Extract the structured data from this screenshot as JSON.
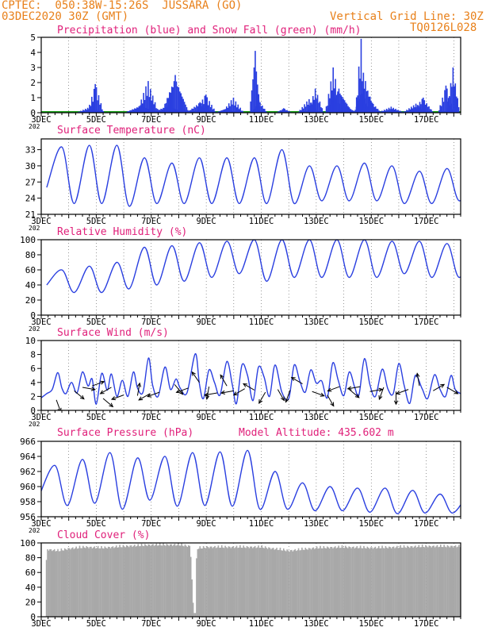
{
  "header": {
    "line1": "CPTEC:  050:38W-15:26S  JUSSARA (GO)",
    "line2": "03DEC2020 30Z (GMT)",
    "grid_note": "Vertical Grid Line: 30Z",
    "code": "TQ0126L028"
  },
  "colors": {
    "header": "#e8801a",
    "title": "#e0207a",
    "series": "#2a3fe0",
    "snow": "#18a018",
    "cloud": "#a8a8a8",
    "wind_arrow": "#000000"
  },
  "chart_data": [
    {
      "type": "bar",
      "title": "Precipitation (blue) and Snow Fall (green) (mm/h)",
      "ylim": [
        0,
        5
      ],
      "yticks": [
        0,
        1,
        2,
        3,
        4,
        5
      ],
      "xlim": [
        3.0,
        18.25
      ],
      "xlabels": [
        "3DEC",
        "5DEC",
        "7DEC",
        "9DEC",
        "11DEC",
        "13DEC",
        "15DEC",
        "17DEC"
      ],
      "x_partial_label": "202",
      "snow_all_zero": true,
      "precip_events": [
        [
          4.75,
          0.4,
          0.5
        ],
        [
          4.95,
          1.9,
          0.3
        ],
        [
          6.6,
          0.5,
          0.6
        ],
        [
          6.85,
          2.1,
          0.4
        ],
        [
          7.6,
          0.5,
          0.6
        ],
        [
          7.85,
          2.5,
          0.5
        ],
        [
          8.1,
          0.3,
          0.4
        ],
        [
          8.75,
          0.7,
          0.5
        ],
        [
          8.95,
          1.2,
          0.4
        ],
        [
          9.7,
          0.3,
          0.4
        ],
        [
          9.95,
          1.0,
          0.4
        ],
        [
          10.75,
          4.1,
          0.2
        ],
        [
          10.9,
          0.8,
          0.3
        ],
        [
          11.8,
          0.3,
          0.3
        ],
        [
          12.7,
          0.9,
          0.4
        ],
        [
          12.95,
          1.6,
          0.3
        ],
        [
          13.6,
          3.0,
          0.3
        ],
        [
          13.8,
          1.6,
          0.5
        ],
        [
          14.05,
          0.5,
          0.4
        ],
        [
          14.6,
          4.9,
          0.2
        ],
        [
          14.75,
          2.1,
          0.4
        ],
        [
          14.95,
          0.8,
          0.4
        ],
        [
          15.7,
          0.4,
          0.5
        ],
        [
          16.6,
          0.6,
          0.5
        ],
        [
          16.85,
          1.0,
          0.4
        ],
        [
          17.7,
          1.8,
          0.3
        ],
        [
          17.95,
          3.0,
          0.25
        ]
      ]
    },
    {
      "type": "line",
      "title": "Surface Temperature (nC)",
      "ylim": [
        21,
        35
      ],
      "yticks": [
        21,
        24,
        27,
        30,
        33
      ],
      "xlim": [
        3.0,
        18.25
      ],
      "xlabels": [
        "3DEC",
        "5DEC",
        "7DEC",
        "9DEC",
        "11DEC",
        "13DEC",
        "15DEC",
        "17DEC"
      ],
      "x_partial_label": "202",
      "peak_offset": 0.75,
      "daily_min": [
        26,
        23,
        23,
        22.5,
        23,
        23,
        23,
        23,
        23,
        23,
        23.5,
        23.5,
        23.5,
        23,
        23,
        23.5
      ],
      "daily_max": [
        33.5,
        33.8,
        33.8,
        31.5,
        30.5,
        31.5,
        31.5,
        31.5,
        33,
        30,
        30,
        30.5,
        30,
        29,
        29.5,
        28.5
      ]
    },
    {
      "type": "line",
      "title": "Relative Humidity (%)",
      "ylim": [
        0,
        100
      ],
      "yticks": [
        0,
        20,
        40,
        60,
        80,
        100
      ],
      "xlim": [
        3.0,
        18.25
      ],
      "xlabels": [
        "3DEC",
        "5DEC",
        "7DEC",
        "9DEC",
        "11DEC",
        "13DEC",
        "15DEC",
        "17DEC"
      ],
      "x_partial_label": "202",
      "peak_offset": 0.75,
      "daily_min": [
        40,
        30,
        30,
        35,
        40,
        45,
        50,
        55,
        45,
        50,
        50,
        50,
        50,
        55,
        50,
        50
      ],
      "daily_max": [
        60,
        65,
        70,
        90,
        92,
        96,
        98,
        100,
        100,
        100,
        100,
        100,
        98,
        98,
        95,
        95
      ]
    },
    {
      "type": "line",
      "title": "Surface Wind (m/s)",
      "ylim": [
        0,
        10
      ],
      "yticks": [
        0,
        2,
        4,
        6,
        8,
        10
      ],
      "xlim": [
        3.0,
        18.25
      ],
      "xlabels": [
        "3DEC",
        "5DEC",
        "7DEC",
        "9DEC",
        "11DEC",
        "13DEC",
        "15DEC",
        "17DEC"
      ],
      "x_partial_label": "202",
      "speed": [
        [
          3.0,
          1.8
        ],
        [
          3.2,
          2.4
        ],
        [
          3.4,
          3.0
        ],
        [
          3.6,
          5.4
        ],
        [
          3.75,
          3.2
        ],
        [
          3.9,
          2.4
        ],
        [
          4.1,
          4.0
        ],
        [
          4.3,
          2.5
        ],
        [
          4.5,
          5.5
        ],
        [
          4.7,
          3.5
        ],
        [
          4.85,
          4.5
        ],
        [
          5.0,
          0.9
        ],
        [
          5.2,
          5.3
        ],
        [
          5.4,
          2.9
        ],
        [
          5.55,
          5.2
        ],
        [
          5.75,
          2.0
        ],
        [
          5.95,
          4.3
        ],
        [
          6.15,
          2.0
        ],
        [
          6.35,
          5.5
        ],
        [
          6.5,
          3.2
        ],
        [
          6.7,
          2.6
        ],
        [
          6.9,
          7.5
        ],
        [
          7.05,
          3.6
        ],
        [
          7.25,
          2.0
        ],
        [
          7.5,
          6.2
        ],
        [
          7.7,
          3.0
        ],
        [
          7.9,
          4.5
        ],
        [
          8.05,
          3.2
        ],
        [
          8.3,
          2.5
        ],
        [
          8.6,
          8.1
        ],
        [
          8.75,
          3.8
        ],
        [
          8.9,
          1.7
        ],
        [
          9.1,
          5.8
        ],
        [
          9.3,
          4.0
        ],
        [
          9.5,
          2.2
        ],
        [
          9.75,
          7.0
        ],
        [
          9.95,
          3.6
        ],
        [
          10.1,
          1.0
        ],
        [
          10.3,
          6.5
        ],
        [
          10.5,
          5.0
        ],
        [
          10.7,
          1.4
        ],
        [
          10.9,
          6.2
        ],
        [
          11.1,
          4.8
        ],
        [
          11.3,
          2.0
        ],
        [
          11.5,
          6.5
        ],
        [
          11.75,
          2.6
        ],
        [
          12.0,
          1.7
        ],
        [
          12.2,
          6.5
        ],
        [
          12.4,
          4.2
        ],
        [
          12.6,
          2.6
        ],
        [
          12.8,
          5.8
        ],
        [
          13.0,
          3.9
        ],
        [
          13.2,
          4.2
        ],
        [
          13.4,
          1.8
        ],
        [
          13.6,
          6.8
        ],
        [
          13.8,
          4.3
        ],
        [
          14.0,
          2.1
        ],
        [
          14.2,
          5.5
        ],
        [
          14.4,
          3.3
        ],
        [
          14.55,
          2.2
        ],
        [
          14.75,
          7.4
        ],
        [
          14.95,
          3.7
        ],
        [
          15.15,
          2.0
        ],
        [
          15.4,
          5.9
        ],
        [
          15.6,
          3.1
        ],
        [
          15.8,
          2.4
        ],
        [
          16.0,
          6.7
        ],
        [
          16.2,
          3.5
        ],
        [
          16.4,
          1.0
        ],
        [
          16.6,
          5.0
        ],
        [
          16.85,
          3.1
        ],
        [
          17.05,
          1.7
        ],
        [
          17.3,
          5.1
        ],
        [
          17.5,
          3.0
        ],
        [
          17.7,
          2.0
        ],
        [
          17.9,
          5.0
        ],
        [
          18.05,
          3.0
        ],
        [
          18.25,
          2.4
        ]
      ],
      "arrows": [
        [
          3.55,
          1.5,
          290
        ],
        [
          4.2,
          2.8,
          320
        ],
        [
          4.5,
          3.3,
          350
        ],
        [
          4.85,
          3.5,
          20
        ],
        [
          5.25,
          1.7,
          320
        ],
        [
          5.55,
          3.3,
          210
        ],
        [
          6.0,
          2.2,
          200
        ],
        [
          6.5,
          2.1,
          80
        ],
        [
          6.95,
          2.4,
          210
        ],
        [
          7.3,
          2.6,
          200
        ],
        [
          7.85,
          3.7,
          310
        ],
        [
          8.35,
          3.2,
          200
        ],
        [
          8.75,
          4.0,
          125
        ],
        [
          9.1,
          3.4,
          260
        ],
        [
          9.4,
          2.5,
          190
        ],
        [
          9.75,
          3.5,
          120
        ],
        [
          10.0,
          2.8,
          190
        ],
        [
          10.4,
          3.1,
          210
        ],
        [
          10.75,
          2.9,
          150
        ],
        [
          11.15,
          2.6,
          240
        ],
        [
          11.6,
          3.0,
          300
        ],
        [
          12.05,
          2.9,
          250
        ],
        [
          12.5,
          3.8,
          150
        ],
        [
          12.85,
          2.7,
          340
        ],
        [
          13.4,
          2.2,
          300
        ],
        [
          13.85,
          3.4,
          200
        ],
        [
          14.2,
          3.0,
          320
        ],
        [
          14.6,
          3.4,
          190
        ],
        [
          14.95,
          2.7,
          10
        ],
        [
          15.45,
          3.3,
          250
        ],
        [
          15.9,
          2.7,
          270
        ],
        [
          16.35,
          3.0,
          200
        ],
        [
          16.75,
          3.5,
          100
        ],
        [
          17.25,
          2.8,
          30
        ],
        [
          17.75,
          3.3,
          330
        ]
      ]
    },
    {
      "type": "line",
      "title": "Surface Pressure (hPa)",
      "annotation": "Model Altitude: 435.602  m",
      "ylim": [
        956,
        966
      ],
      "yticks": [
        956,
        958,
        960,
        962,
        964,
        966
      ],
      "xlim": [
        3.0,
        18.25
      ],
      "xlabels": [
        "3DEC",
        "5DEC",
        "7DEC",
        "9DEC",
        "11DEC",
        "13DEC",
        "15DEC",
        "17DEC"
      ],
      "x_partial_label": "202",
      "peak_offset": 0.5,
      "daily_high": [
        962.8,
        963.6,
        964.5,
        963.8,
        964.0,
        964.5,
        964.6,
        964.8,
        962.0,
        960.5,
        960.0,
        959.8,
        959.8,
        959.5,
        959.0,
        959.0
      ],
      "daily_low": [
        959.0,
        957.5,
        957.8,
        957.0,
        958.2,
        957.4,
        957.5,
        957.4,
        957.0,
        957.0,
        956.8,
        956.8,
        956.6,
        956.4,
        956.5,
        956.5
      ]
    },
    {
      "type": "area",
      "title": "Cloud Cover (%)",
      "ylim": [
        0,
        100
      ],
      "yticks": [
        0,
        20,
        40,
        60,
        80,
        100
      ],
      "xlim": [
        3.0,
        18.25
      ],
      "xlabels": [
        "3DEC",
        "5DEC",
        "7DEC",
        "9DEC",
        "11DEC",
        "13DEC",
        "15DEC",
        "17DEC"
      ],
      "cover_points": [
        [
          3.0,
          0
        ],
        [
          3.15,
          0
        ],
        [
          3.17,
          94
        ],
        [
          3.6,
          92
        ],
        [
          4.0,
          95
        ],
        [
          4.6,
          97
        ],
        [
          5.2,
          96
        ],
        [
          6.0,
          98
        ],
        [
          7.0,
          100
        ],
        [
          8.0,
          100
        ],
        [
          8.4,
          98
        ],
        [
          8.52,
          5
        ],
        [
          8.6,
          5
        ],
        [
          8.63,
          95
        ],
        [
          9.0,
          97
        ],
        [
          10.0,
          97
        ],
        [
          11.0,
          97
        ],
        [
          12.0,
          92
        ],
        [
          13.0,
          96
        ],
        [
          14.0,
          97
        ],
        [
          15.0,
          96
        ],
        [
          16.0,
          97
        ],
        [
          17.0,
          98
        ],
        [
          18.25,
          98
        ]
      ]
    }
  ]
}
